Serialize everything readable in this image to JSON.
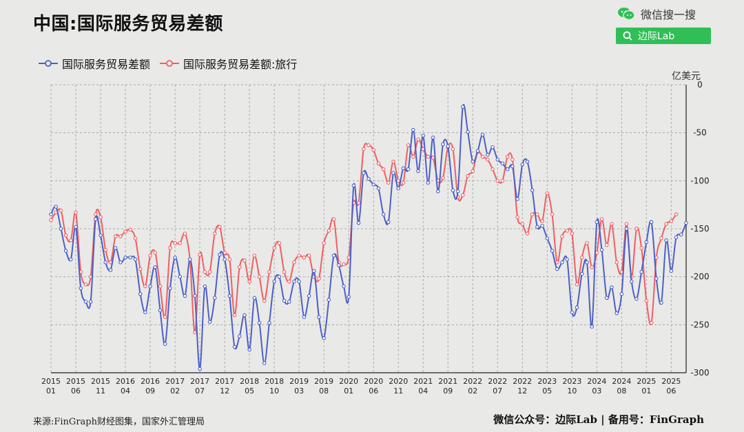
{
  "header": {
    "title": "中国:国际服务贸易差额",
    "wechat_label": "微信搜一搜",
    "search_label": "边际Lab"
  },
  "footer": {
    "source": "来源:FinGraph财经图集，国家外汇管理局",
    "signature": "微信公众号：边际Lab  |  备用号：FinGraph"
  },
  "colors": {
    "series1": "#4a5fc8",
    "series2": "#ef5e62",
    "wechat_green": "#2fbf56"
  },
  "chart_data": {
    "type": "line",
    "unit_label": "亿美元",
    "ylim": [
      -300,
      0
    ],
    "yticks": [
      0,
      -50,
      -100,
      -150,
      -200,
      -250,
      -300
    ],
    "grid": true,
    "legend_position": "top-left",
    "y_axis_side": "right",
    "x_tick_labels": [
      [
        "2015",
        "01"
      ],
      [
        "2015",
        "06"
      ],
      [
        "2015",
        "11"
      ],
      [
        "2016",
        "04"
      ],
      [
        "2016",
        "09"
      ],
      [
        "2017",
        "02"
      ],
      [
        "2017",
        "07"
      ],
      [
        "2017",
        "12"
      ],
      [
        "2018",
        "05"
      ],
      [
        "2018",
        "10"
      ],
      [
        "2019",
        "03"
      ],
      [
        "2019",
        "08"
      ],
      [
        "2020",
        "01"
      ],
      [
        "2020",
        "06"
      ],
      [
        "2020",
        "11"
      ],
      [
        "2021",
        "04"
      ],
      [
        "2021",
        "09"
      ],
      [
        "2022",
        "02"
      ],
      [
        "2022",
        "07"
      ],
      [
        "2022",
        "12"
      ],
      [
        "2023",
        "05"
      ],
      [
        "2023",
        "10"
      ],
      [
        "2024",
        "03"
      ],
      [
        "2024",
        "08"
      ],
      [
        "2025",
        "01"
      ],
      [
        "2025",
        "06"
      ]
    ],
    "series": [
      {
        "name": "国际服务贸易差额",
        "values": [
          -135,
          -127,
          -150,
          -173,
          -182,
          -148,
          -212,
          -226,
          -226,
          -140,
          -157,
          -185,
          -193,
          -170,
          -185,
          -180,
          -180,
          -182,
          -218,
          -237,
          -210,
          -190,
          -235,
          -270,
          -212,
          -180,
          -200,
          -220,
          -182,
          -220,
          -296,
          -210,
          -247,
          -222,
          -177,
          -182,
          -220,
          -273,
          -262,
          -240,
          -276,
          -222,
          -248,
          -290,
          -248,
          -205,
          -200,
          -225,
          -226,
          -205,
          -205,
          -242,
          -220,
          -194,
          -242,
          -264,
          -224,
          -178,
          -188,
          -210,
          -221,
          -105,
          -144,
          -92,
          -98,
          -104,
          -108,
          -135,
          -143,
          -92,
          -108,
          -87,
          -88,
          -47,
          -90,
          -53,
          -102,
          -55,
          -111,
          -62,
          -64,
          -110,
          -111,
          -23,
          -49,
          -80,
          -69,
          -52,
          -73,
          -65,
          -78,
          -82,
          -88,
          -85,
          -119,
          -83,
          -80,
          -110,
          -148,
          -147,
          -160,
          -173,
          -192,
          -185,
          -182,
          -237,
          -232,
          -197,
          -185,
          -252,
          -143,
          -172,
          -222,
          -211,
          -238,
          -218,
          -150,
          -205,
          -223,
          -195,
          -164,
          -143,
          -202,
          -227,
          -162,
          -194,
          -159,
          -156,
          -144
        ]
      },
      {
        "name": "国际服务贸易差额:旅行",
        "values": [
          -141,
          -133,
          -131,
          -157,
          -162,
          -133,
          -195,
          -208,
          -200,
          -135,
          -138,
          -172,
          -185,
          -158,
          -158,
          -153,
          -151,
          -160,
          -192,
          -210,
          -178,
          -175,
          -210,
          -242,
          -170,
          -165,
          -165,
          -155,
          -182,
          -258,
          -177,
          -195,
          -195,
          -155,
          -148,
          -175,
          -182,
          -240,
          -190,
          -183,
          -205,
          -178,
          -200,
          -225,
          -195,
          -170,
          -165,
          -195,
          -205,
          -185,
          -178,
          -180,
          -178,
          -200,
          -202,
          -165,
          -152,
          -140,
          -185,
          -187,
          -180,
          -123,
          -123,
          -67,
          -63,
          -68,
          -82,
          -88,
          -102,
          -80,
          -100,
          -102,
          -63,
          -75,
          -57,
          -67,
          -75,
          -76,
          -100,
          -97,
          -65,
          -67,
          -117,
          -115,
          -95,
          -90,
          -70,
          -75,
          -78,
          -88,
          -100,
          -100,
          -75,
          -78,
          -138,
          -145,
          -155,
          -135,
          -135,
          -142,
          -113,
          -135,
          -185,
          -158,
          -152,
          -155,
          -208,
          -180,
          -165,
          -190,
          -175,
          -140,
          -167,
          -145,
          -185,
          -195,
          -145,
          -200,
          -150,
          -170,
          -225,
          -248,
          -180,
          -160,
          -145,
          -142,
          -135
        ]
      }
    ]
  }
}
